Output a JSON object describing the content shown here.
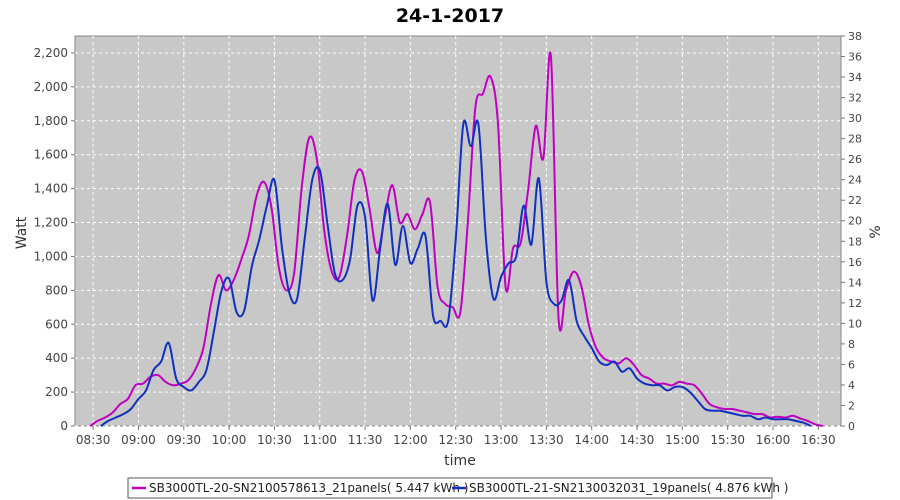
{
  "chart_data": {
    "type": "line",
    "title": "24-1-2017",
    "xlabel": "time",
    "ylabel": "Watt",
    "y2label": "%",
    "xlim": [
      "08:18",
      "16:45"
    ],
    "ylim": [
      0,
      2300
    ],
    "y2lim": [
      0,
      38
    ],
    "x_ticks": [
      "08:30",
      "09:00",
      "09:30",
      "10:00",
      "10:30",
      "11:00",
      "11:30",
      "12:00",
      "12:30",
      "13:00",
      "13:30",
      "14:00",
      "14:30",
      "15:00",
      "15:30",
      "16:00",
      "16:30"
    ],
    "y_ticks": [
      "0",
      "200",
      "400",
      "600",
      "800",
      "1,000",
      "1,200",
      "1,400",
      "1,600",
      "1,800",
      "2,000",
      "2,200"
    ],
    "y2_ticks": [
      "0",
      "2",
      "4",
      "6",
      "8",
      "10",
      "12",
      "14",
      "16",
      "18",
      "20",
      "22",
      "24",
      "26",
      "28",
      "30",
      "32",
      "34",
      "36",
      "38"
    ],
    "grid": true,
    "legend_position": "bottom",
    "series": [
      {
        "name": "SB3000TL-20-SN2100578613_21panels( 5.447 kWh )",
        "color": "#c000c0",
        "points": [
          [
            "08:28",
            0
          ],
          [
            "08:33",
            30
          ],
          [
            "08:38",
            50
          ],
          [
            "08:43",
            80
          ],
          [
            "08:48",
            130
          ],
          [
            "08:53",
            160
          ],
          [
            "08:58",
            240
          ],
          [
            "09:03",
            250
          ],
          [
            "09:08",
            290
          ],
          [
            "09:13",
            300
          ],
          [
            "09:18",
            260
          ],
          [
            "09:23",
            240
          ],
          [
            "09:28",
            250
          ],
          [
            "09:33",
            270
          ],
          [
            "09:38",
            340
          ],
          [
            "09:43",
            460
          ],
          [
            "09:48",
            720
          ],
          [
            "09:53",
            890
          ],
          [
            "09:58",
            800
          ],
          [
            "10:03",
            860
          ],
          [
            "10:08",
            980
          ],
          [
            "10:13",
            1120
          ],
          [
            "10:18",
            1350
          ],
          [
            "10:23",
            1440
          ],
          [
            "10:28",
            1290
          ],
          [
            "10:33",
            930
          ],
          [
            "10:38",
            800
          ],
          [
            "10:43",
            900
          ],
          [
            "10:48",
            1400
          ],
          [
            "10:53",
            1700
          ],
          [
            "10:58",
            1580
          ],
          [
            "11:03",
            1150
          ],
          [
            "11:08",
            910
          ],
          [
            "11:13",
            880
          ],
          [
            "11:18",
            1120
          ],
          [
            "11:23",
            1450
          ],
          [
            "11:28",
            1500
          ],
          [
            "11:33",
            1280
          ],
          [
            "11:38",
            1020
          ],
          [
            "11:43",
            1230
          ],
          [
            "11:48",
            1420
          ],
          [
            "11:53",
            1200
          ],
          [
            "11:58",
            1250
          ],
          [
            "12:03",
            1160
          ],
          [
            "12:08",
            1250
          ],
          [
            "12:13",
            1320
          ],
          [
            "12:18",
            820
          ],
          [
            "12:23",
            720
          ],
          [
            "12:28",
            700
          ],
          [
            "12:33",
            670
          ],
          [
            "12:38",
            1200
          ],
          [
            "12:43",
            1880
          ],
          [
            "12:48",
            1960
          ],
          [
            "12:53",
            2060
          ],
          [
            "12:58",
            1780
          ],
          [
            "13:03",
            820
          ],
          [
            "13:08",
            1050
          ],
          [
            "13:13",
            1080
          ],
          [
            "13:18",
            1400
          ],
          [
            "13:23",
            1770
          ],
          [
            "13:28",
            1580
          ],
          [
            "13:33",
            2180
          ],
          [
            "13:38",
            640
          ],
          [
            "13:43",
            800
          ],
          [
            "13:48",
            910
          ],
          [
            "13:53",
            830
          ],
          [
            "13:58",
            600
          ],
          [
            "14:03",
            460
          ],
          [
            "14:08",
            400
          ],
          [
            "14:13",
            380
          ],
          [
            "14:18",
            370
          ],
          [
            "14:23",
            400
          ],
          [
            "14:28",
            360
          ],
          [
            "14:33",
            300
          ],
          [
            "14:38",
            280
          ],
          [
            "14:43",
            250
          ],
          [
            "14:48",
            250
          ],
          [
            "14:53",
            240
          ],
          [
            "14:58",
            260
          ],
          [
            "15:03",
            250
          ],
          [
            "15:08",
            240
          ],
          [
            "15:13",
            190
          ],
          [
            "15:18",
            130
          ],
          [
            "15:23",
            110
          ],
          [
            "15:28",
            100
          ],
          [
            "15:33",
            100
          ],
          [
            "15:38",
            90
          ],
          [
            "15:43",
            80
          ],
          [
            "15:48",
            70
          ],
          [
            "15:53",
            70
          ],
          [
            "15:58",
            50
          ],
          [
            "16:03",
            55
          ],
          [
            "16:08",
            50
          ],
          [
            "16:13",
            60
          ],
          [
            "16:18",
            45
          ],
          [
            "16:23",
            30
          ],
          [
            "16:28",
            10
          ],
          [
            "16:33",
            0
          ]
        ]
      },
      {
        "name": "SB3000TL-21-SN2130032031_19panels( 4.876 kWh )",
        "color": "#1030c0",
        "points": [
          [
            "08:35",
            0
          ],
          [
            "08:40",
            30
          ],
          [
            "08:45",
            50
          ],
          [
            "08:50",
            70
          ],
          [
            "08:55",
            100
          ],
          [
            "09:00",
            160
          ],
          [
            "09:05",
            210
          ],
          [
            "09:10",
            330
          ],
          [
            "09:15",
            380
          ],
          [
            "09:20",
            490
          ],
          [
            "09:25",
            280
          ],
          [
            "09:30",
            230
          ],
          [
            "09:35",
            210
          ],
          [
            "09:40",
            260
          ],
          [
            "09:45",
            330
          ],
          [
            "09:50",
            560
          ],
          [
            "09:55",
            800
          ],
          [
            "10:00",
            870
          ],
          [
            "10:05",
            670
          ],
          [
            "10:10",
            680
          ],
          [
            "10:15",
            940
          ],
          [
            "10:20",
            1100
          ],
          [
            "10:25",
            1300
          ],
          [
            "10:30",
            1450
          ],
          [
            "10:35",
            1050
          ],
          [
            "10:40",
            780
          ],
          [
            "10:45",
            750
          ],
          [
            "10:50",
            1100
          ],
          [
            "10:55",
            1450
          ],
          [
            "11:00",
            1510
          ],
          [
            "11:05",
            1200
          ],
          [
            "11:10",
            900
          ],
          [
            "11:15",
            860
          ],
          [
            "11:20",
            980
          ],
          [
            "11:25",
            1300
          ],
          [
            "11:30",
            1230
          ],
          [
            "11:35",
            740
          ],
          [
            "11:40",
            1050
          ],
          [
            "11:45",
            1310
          ],
          [
            "11:50",
            950
          ],
          [
            "11:55",
            1180
          ],
          [
            "12:00",
            960
          ],
          [
            "12:05",
            1050
          ],
          [
            "12:10",
            1120
          ],
          [
            "12:15",
            650
          ],
          [
            "12:20",
            620
          ],
          [
            "12:25",
            620
          ],
          [
            "12:30",
            1100
          ],
          [
            "12:35",
            1780
          ],
          [
            "12:40",
            1650
          ],
          [
            "12:45",
            1780
          ],
          [
            "12:50",
            1100
          ],
          [
            "12:55",
            750
          ],
          [
            "13:00",
            880
          ],
          [
            "13:05",
            960
          ],
          [
            "13:10",
            1000
          ],
          [
            "13:15",
            1300
          ],
          [
            "13:20",
            1070
          ],
          [
            "13:25",
            1460
          ],
          [
            "13:30",
            850
          ],
          [
            "13:35",
            720
          ],
          [
            "13:40",
            740
          ],
          [
            "13:45",
            860
          ],
          [
            "13:50",
            620
          ],
          [
            "13:55",
            530
          ],
          [
            "14:00",
            460
          ],
          [
            "14:05",
            380
          ],
          [
            "14:10",
            360
          ],
          [
            "14:15",
            380
          ],
          [
            "14:20",
            320
          ],
          [
            "14:25",
            340
          ],
          [
            "14:30",
            280
          ],
          [
            "14:35",
            250
          ],
          [
            "14:40",
            240
          ],
          [
            "14:45",
            240
          ],
          [
            "14:50",
            210
          ],
          [
            "14:55",
            230
          ],
          [
            "15:00",
            230
          ],
          [
            "15:05",
            200
          ],
          [
            "15:10",
            150
          ],
          [
            "15:15",
            100
          ],
          [
            "15:20",
            90
          ],
          [
            "15:25",
            90
          ],
          [
            "15:30",
            80
          ],
          [
            "15:35",
            70
          ],
          [
            "15:40",
            60
          ],
          [
            "15:45",
            60
          ],
          [
            "15:50",
            40
          ],
          [
            "15:55",
            50
          ],
          [
            "16:00",
            40
          ],
          [
            "16:05",
            40
          ],
          [
            "16:10",
            40
          ],
          [
            "16:15",
            30
          ],
          [
            "16:20",
            20
          ],
          [
            "16:25",
            0
          ]
        ]
      }
    ]
  }
}
